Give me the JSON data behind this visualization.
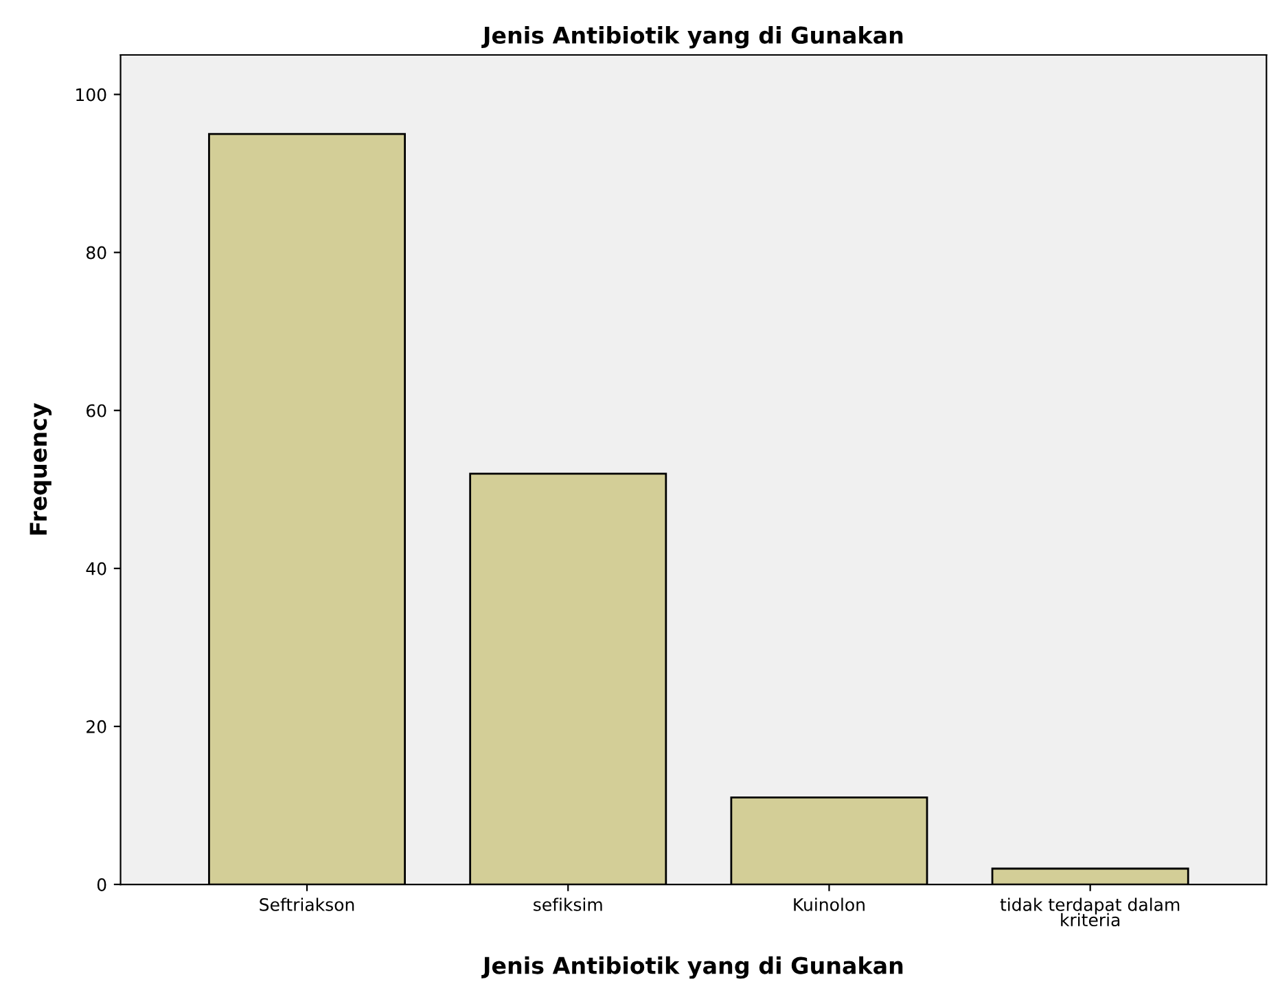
{
  "chart_data": {
    "type": "bar",
    "title": "Jenis Antibiotik yang di Gunakan",
    "xlabel": "Jenis Antibiotik yang di Gunakan",
    "ylabel": "Frequency",
    "categories": [
      "Seftriakson",
      "sefiksim",
      "Kuinolon",
      "tidak terdapat dalam\nkriteria"
    ],
    "values": [
      95,
      52,
      11,
      2
    ],
    "color": "#d3ce97",
    "ylim": [
      0,
      105
    ],
    "yticks": [
      0,
      20,
      40,
      60,
      80,
      100
    ],
    "grid": false,
    "legend": false
  }
}
